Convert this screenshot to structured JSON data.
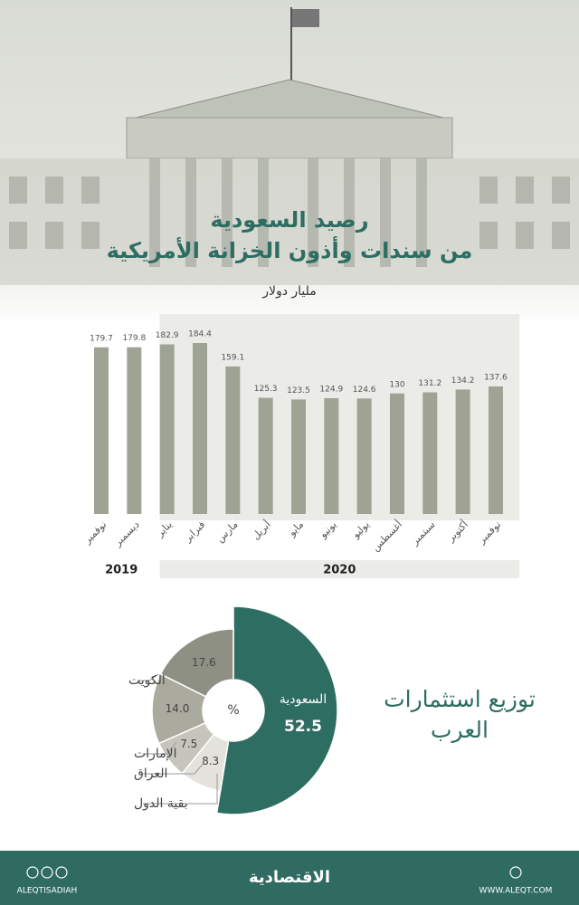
{
  "chart_data": [
    {
      "type": "bar",
      "title": [
        "رصيد السعودية",
        "من سندات وأذون الخزانة الأمريكية"
      ],
      "subtitle": "مليار دولار",
      "categories": [
        "نوفمبر",
        "ديسمبر",
        "يناير",
        "فبراير",
        "مارس",
        "أبريل",
        "مايو",
        "يونيو",
        "يوليو",
        "أغسطس",
        "سبتمبر",
        "أكتوبر",
        "نوفمبر"
      ],
      "values": [
        179.7,
        179.8,
        182.9,
        184.4,
        159.1,
        125.3,
        123.5,
        124.9,
        124.6,
        130,
        131.2,
        134.2,
        137.6
      ],
      "color": "#9ea394",
      "ylim": [
        0,
        200
      ],
      "groups": [
        {
          "label": "2019",
          "span": 2
        },
        {
          "label": "2020",
          "span": 11
        }
      ]
    },
    {
      "type": "donut",
      "title": "توزيع استثمارات العرب",
      "center_label": "%",
      "categories": [
        "السعودية",
        "بقية الدول",
        "العراق",
        "الإمارات",
        "الكويت"
      ],
      "values": [
        52.5,
        8.3,
        7.5,
        14.0,
        17.6
      ],
      "value_labels": [
        "52.5",
        "8.3",
        "7.5",
        "14.0",
        "17.6"
      ],
      "colors": [
        "#2e6d62",
        "#e3e2dc",
        "#c6c5bb",
        "#abaa9f",
        "#8f9084"
      ]
    }
  ],
  "footer": {
    "handle": "ALEQTISADIAH",
    "brand": "الاقتصادية",
    "url": "WWW.ALEQT.COM"
  }
}
